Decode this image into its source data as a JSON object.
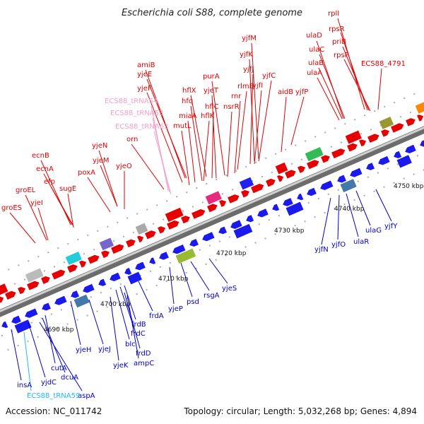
{
  "title": "Escherichia coli S88, complete genome",
  "footer": {
    "accession": "Accession: NC_011742",
    "topology": "Topology: circular; Length: 5,032,268 bp; Genes: 4,894"
  },
  "colors": {
    "forward_label": "#e00000",
    "reverse_label": "#0000cc",
    "trna_forward": "#f4a0c8",
    "trna_reverse": "#22b8f0",
    "backbone": "#888888",
    "tick": "#228822"
  },
  "kbp_labels": [
    "4690 kbp",
    "4700 kbp",
    "4710 kbp",
    "4720 kbp",
    "4730 kbp",
    "4740 kbp",
    "4750 kbp"
  ],
  "gene_labels": [
    {
      "text": "rplI",
      "strand": "fwd"
    },
    {
      "text": "rpsR",
      "strand": "fwd"
    },
    {
      "text": "priB",
      "strand": "fwd"
    },
    {
      "text": "rpsF",
      "strand": "fwd"
    },
    {
      "text": "ulaD",
      "strand": "fwd"
    },
    {
      "text": "ulaC",
      "strand": "fwd"
    },
    {
      "text": "ulaB",
      "strand": "fwd"
    },
    {
      "text": "ulaA",
      "strand": "fwd"
    },
    {
      "text": "ECS88_4791",
      "strand": "fwd"
    },
    {
      "text": "yjfM",
      "strand": "fwd"
    },
    {
      "text": "yjfK",
      "strand": "fwd"
    },
    {
      "text": "yjfJ",
      "strand": "fwd"
    },
    {
      "text": "yjfC",
      "strand": "fwd"
    },
    {
      "text": "yjfI",
      "strand": "fwd"
    },
    {
      "text": "yjfP",
      "strand": "fwd"
    },
    {
      "text": "aidB",
      "strand": "fwd"
    },
    {
      "text": "purA",
      "strand": "fwd"
    },
    {
      "text": "rlmB",
      "strand": "fwd"
    },
    {
      "text": "rnr",
      "strand": "fwd"
    },
    {
      "text": "amiB",
      "strand": "fwd"
    },
    {
      "text": "yjeE",
      "strand": "fwd"
    },
    {
      "text": "yjeF",
      "strand": "fwd"
    },
    {
      "text": "hflX",
      "strand": "fwd"
    },
    {
      "text": "yjeT",
      "strand": "fwd"
    },
    {
      "text": "hfq",
      "strand": "fwd"
    },
    {
      "text": "hflC",
      "strand": "fwd"
    },
    {
      "text": "nsrR",
      "strand": "fwd"
    },
    {
      "text": "miaA",
      "strand": "fwd"
    },
    {
      "text": "hflK",
      "strand": "fwd"
    },
    {
      "text": "mutL",
      "strand": "fwd"
    },
    {
      "text": "ECS88_tRNA54",
      "strand": "fwd-trna"
    },
    {
      "text": "ECS88_tRNA53",
      "strand": "fwd-trna"
    },
    {
      "text": "ECS88_tRNA63",
      "strand": "fwd-trna"
    },
    {
      "text": "orn",
      "strand": "fwd"
    },
    {
      "text": "yjeN",
      "strand": "fwd"
    },
    {
      "text": "yjeM",
      "strand": "fwd"
    },
    {
      "text": "yjeO",
      "strand": "fwd"
    },
    {
      "text": "ecnB",
      "strand": "fwd"
    },
    {
      "text": "ecnA",
      "strand": "fwd"
    },
    {
      "text": "efp",
      "strand": "fwd"
    },
    {
      "text": "poxA",
      "strand": "fwd"
    },
    {
      "text": "sugE",
      "strand": "fwd"
    },
    {
      "text": "groEL",
      "strand": "fwd"
    },
    {
      "text": "yjeI",
      "strand": "fwd"
    },
    {
      "text": "groES",
      "strand": "fwd"
    },
    {
      "text": "yjfY",
      "strand": "rev"
    },
    {
      "text": "ulaG",
      "strand": "rev"
    },
    {
      "text": "ulaR",
      "strand": "rev"
    },
    {
      "text": "yjfO",
      "strand": "rev"
    },
    {
      "text": "yjfN",
      "strand": "rev"
    },
    {
      "text": "yjeS",
      "strand": "rev"
    },
    {
      "text": "rsgA",
      "strand": "rev"
    },
    {
      "text": "psd",
      "strand": "rev"
    },
    {
      "text": "yjeP",
      "strand": "rev"
    },
    {
      "text": "frdA",
      "strand": "rev"
    },
    {
      "text": "frdB",
      "strand": "rev"
    },
    {
      "text": "frdC",
      "strand": "rev"
    },
    {
      "text": "blc",
      "strand": "rev"
    },
    {
      "text": "frdD",
      "strand": "rev"
    },
    {
      "text": "ampC",
      "strand": "rev"
    },
    {
      "text": "yjeK",
      "strand": "rev"
    },
    {
      "text": "yjeJ",
      "strand": "rev"
    },
    {
      "text": "yjeH",
      "strand": "rev"
    },
    {
      "text": "cutA",
      "strand": "rev"
    },
    {
      "text": "dcuA",
      "strand": "rev"
    },
    {
      "text": "aspA",
      "strand": "rev"
    },
    {
      "text": "yjdC",
      "strand": "rev"
    },
    {
      "text": "insA",
      "strand": "rev"
    },
    {
      "text": "ECS88_tRNA59",
      "strand": "rev-trna"
    }
  ]
}
